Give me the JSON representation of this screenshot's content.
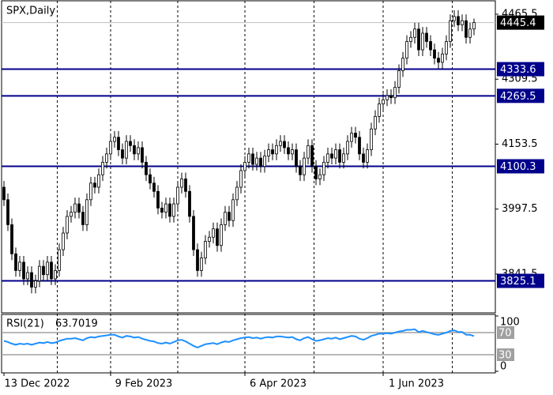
{
  "chart_data": {
    "type": "candlestick",
    "title": "SPX,Daily",
    "categories": [
      "13 Dec 2022",
      null,
      null,
      null,
      null,
      null,
      null,
      null,
      null,
      null,
      null,
      null,
      null,
      null,
      null,
      null,
      null,
      null,
      null,
      null,
      null,
      null,
      null,
      null,
      null,
      null,
      null,
      "9 Feb 2023",
      null,
      null,
      null,
      null,
      null,
      null,
      null,
      null,
      null,
      null,
      null,
      null,
      null,
      null,
      null,
      null,
      null,
      null,
      null,
      null,
      null,
      null,
      null,
      null,
      null,
      null,
      null,
      null,
      null,
      null,
      null,
      null,
      null,
      "6 Apr 2023",
      null,
      null,
      null,
      null,
      null,
      null,
      null,
      null,
      null,
      null,
      null,
      null,
      null,
      null,
      null,
      null,
      null,
      null,
      null,
      null,
      null,
      null,
      null,
      null,
      null,
      null,
      null,
      null,
      null,
      null,
      null,
      null,
      null,
      null,
      "1 Jun 2023",
      null,
      null,
      null,
      null,
      null,
      null,
      null,
      null,
      null,
      null,
      null,
      null,
      null,
      null,
      null,
      null,
      null,
      null,
      null,
      null,
      null,
      null,
      null
    ],
    "open": [
      4050,
      4020,
      3960,
      3890,
      3850,
      3870,
      3830,
      3845,
      3810,
      3825,
      3860,
      3840,
      3870,
      3830,
      3850,
      3900,
      3940,
      3980,
      3990,
      4010,
      3990,
      3960,
      4020,
      4060,
      4050,
      4080,
      4110,
      4130,
      4160,
      4170,
      4140,
      4120,
      4160,
      4150,
      4130,
      4145,
      4110,
      4080,
      4060,
      4040,
      4000,
      3990,
      4010,
      3980,
      4010,
      4050,
      4070,
      4040,
      3980,
      3900,
      3850,
      3880,
      3920,
      3930,
      3950,
      3910,
      3960,
      3990,
      3970,
      4020,
      4050,
      4090,
      4110,
      4130,
      4105,
      4120,
      4100,
      4125,
      4140,
      4130,
      4150,
      4160,
      4145,
      4130,
      4140,
      4100,
      4080,
      4120,
      4150,
      4100,
      4070,
      4080,
      4110,
      4130,
      4120,
      4140,
      4110,
      4130,
      4160,
      4180,
      4170,
      4130,
      4110,
      4140,
      4190,
      4220,
      4250,
      4260,
      4270,
      4265,
      4290,
      4330,
      4360,
      4400,
      4410,
      4430,
      4380,
      4420,
      4400,
      4380,
      4360,
      4350,
      4370,
      4400,
      4450,
      4460,
      4440,
      4450,
      4410,
      4430
    ],
    "high": [
      4065,
      4035,
      3975,
      3905,
      3885,
      3885,
      3860,
      3860,
      3840,
      3875,
      3875,
      3885,
      3885,
      3865,
      3915,
      3955,
      3995,
      4005,
      4025,
      4025,
      4005,
      4035,
      4075,
      4075,
      4095,
      4125,
      4145,
      4175,
      4185,
      4185,
      4155,
      4175,
      4175,
      4165,
      4160,
      4160,
      4125,
      4095,
      4075,
      4055,
      4015,
      4025,
      4025,
      4025,
      4065,
      4085,
      4085,
      4055,
      3995,
      3915,
      3895,
      3935,
      3945,
      3965,
      3965,
      3975,
      4005,
      4005,
      4035,
      4065,
      4105,
      4125,
      4145,
      4145,
      4135,
      4135,
      4140,
      4155,
      4155,
      4165,
      4175,
      4175,
      4160,
      4155,
      4155,
      4115,
      4135,
      4165,
      4165,
      4115,
      4095,
      4125,
      4145,
      4145,
      4155,
      4155,
      4145,
      4175,
      4195,
      4195,
      4185,
      4145,
      4155,
      4205,
      4235,
      4265,
      4275,
      4285,
      4285,
      4305,
      4345,
      4375,
      4415,
      4425,
      4445,
      4445,
      4435,
      4435,
      4415,
      4395,
      4375,
      4385,
      4415,
      4465,
      4475,
      4475,
      4465,
      4465,
      4445,
      4455
    ],
    "low": [
      4005,
      3945,
      3875,
      3835,
      3835,
      3815,
      3815,
      3795,
      3795,
      3810,
      3825,
      3825,
      3815,
      3815,
      3835,
      3885,
      3925,
      3965,
      3975,
      3975,
      3945,
      3945,
      4005,
      4035,
      4035,
      4065,
      4095,
      4115,
      4145,
      4125,
      4105,
      4105,
      4135,
      4115,
      4115,
      4095,
      4065,
      4045,
      4025,
      3985,
      3975,
      3975,
      3965,
      3965,
      3995,
      4035,
      4025,
      3965,
      3885,
      3835,
      3835,
      3865,
      3905,
      3915,
      3895,
      3895,
      3945,
      3955,
      3955,
      4005,
      4035,
      4075,
      4095,
      4090,
      4090,
      4085,
      4085,
      4110,
      4115,
      4115,
      4135,
      4130,
      4115,
      4115,
      4085,
      4065,
      4065,
      4105,
      4085,
      4055,
      4055,
      4065,
      4095,
      4105,
      4105,
      4095,
      4095,
      4115,
      4145,
      4155,
      4115,
      4095,
      4095,
      4125,
      4175,
      4205,
      4235,
      4245,
      4250,
      4250,
      4275,
      4315,
      4345,
      4385,
      4395,
      4365,
      4365,
      4385,
      4365,
      4345,
      4335,
      4335,
      4355,
      4385,
      4435,
      4425,
      4425,
      4395,
      4395,
      4415
    ],
    "close": [
      4020,
      3960,
      3890,
      3850,
      3870,
      3830,
      3845,
      3810,
      3825,
      3860,
      3840,
      3870,
      3830,
      3850,
      3900,
      3940,
      3980,
      3990,
      4010,
      3990,
      3960,
      4020,
      4060,
      4050,
      4080,
      4110,
      4130,
      4160,
      4170,
      4140,
      4120,
      4160,
      4150,
      4130,
      4145,
      4110,
      4080,
      4060,
      4040,
      4000,
      3990,
      4010,
      3980,
      4010,
      4050,
      4070,
      4040,
      3980,
      3900,
      3850,
      3880,
      3920,
      3930,
      3950,
      3910,
      3960,
      3990,
      3970,
      4020,
      4050,
      4090,
      4110,
      4130,
      4105,
      4120,
      4100,
      4125,
      4140,
      4130,
      4150,
      4160,
      4145,
      4130,
      4140,
      4100,
      4080,
      4120,
      4150,
      4100,
      4070,
      4080,
      4110,
      4130,
      4120,
      4140,
      4110,
      4130,
      4160,
      4180,
      4170,
      4130,
      4110,
      4140,
      4190,
      4220,
      4250,
      4260,
      4270,
      4265,
      4290,
      4330,
      4360,
      4400,
      4410,
      4430,
      4380,
      4420,
      4400,
      4380,
      4360,
      4350,
      4370,
      4400,
      4450,
      4460,
      4440,
      4450,
      4410,
      4430,
      4445.4
    ],
    "ylim": [
      3748.3,
      4497.8
    ],
    "yticks": [
      4465.5,
      4309.5,
      4153.5,
      3997.5,
      3841.5
    ],
    "levels": [
      4333.6,
      4269.5,
      4100.3,
      3825.1
    ],
    "grid": true,
    "colors": {
      "up": "#ffffff",
      "down": "#000000",
      "level": "#00008b",
      "indicator": "#1e90ff"
    },
    "indicator": {
      "name": "RSI(21)",
      "ylim": [
        0,
        100
      ],
      "yticks": [
        100,
        70,
        30,
        0
      ],
      "values": [
        55,
        53,
        50,
        48,
        50,
        49,
        50,
        48,
        50,
        52,
        51,
        53,
        51,
        52,
        55,
        57,
        59,
        59,
        60,
        58,
        56,
        60,
        62,
        61,
        63,
        64,
        65,
        66,
        66,
        63,
        61,
        64,
        63,
        61,
        62,
        59,
        57,
        55,
        54,
        51,
        50,
        52,
        50,
        53,
        56,
        57,
        54,
        50,
        46,
        43,
        46,
        49,
        50,
        51,
        49,
        52,
        54,
        53,
        56,
        58,
        60,
        61,
        62,
        60,
        61,
        59,
        61,
        62,
        61,
        63,
        63,
        62,
        61,
        62,
        58,
        56,
        60,
        62,
        58,
        55,
        56,
        58,
        60,
        59,
        61,
        58,
        60,
        62,
        64,
        63,
        59,
        57,
        60,
        64,
        66,
        68,
        68,
        69,
        68,
        70,
        72,
        73,
        75,
        75,
        76,
        71,
        73,
        71,
        69,
        67,
        66,
        68,
        70,
        73,
        74,
        71,
        71,
        66,
        66,
        63.7019
      ]
    }
  }
}
